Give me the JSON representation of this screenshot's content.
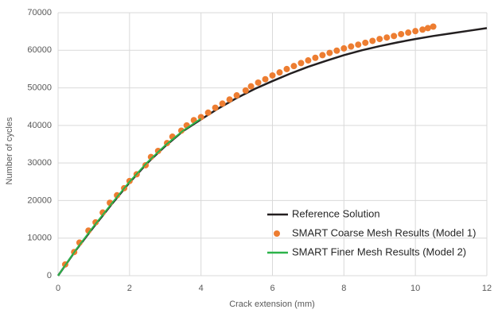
{
  "chart_data": {
    "type": "line",
    "x_label": "Crack extension (mm)",
    "y_label": "Number of cycles",
    "xlim": [
      0,
      12
    ],
    "xticks": [
      0,
      2,
      4,
      6,
      8,
      10,
      12
    ],
    "ylim": [
      0,
      70000
    ],
    "yticks": [
      0,
      10000,
      20000,
      30000,
      40000,
      50000,
      60000,
      70000
    ],
    "grid": true,
    "legend": "lower right",
    "series": [
      {
        "name": "Reference Solution",
        "color": "#231f20",
        "mode": "line",
        "x": [
          0,
          0.5,
          1,
          1.5,
          2,
          2.5,
          3,
          3.5,
          4,
          4.5,
          5,
          5.5,
          6,
          6.5,
          7,
          7.5,
          8,
          8.5,
          9,
          9.5,
          10,
          10.5,
          11,
          11.5,
          12
        ],
        "values": [
          0,
          6800,
          13000,
          19000,
          24800,
          30000,
          34500,
          38500,
          41600,
          44600,
          47300,
          49700,
          51800,
          53800,
          55600,
          57200,
          58700,
          60000,
          61100,
          62100,
          63000,
          63800,
          64500,
          65200,
          65900
        ]
      },
      {
        "name": "SMART Coarse Mesh Results (Model 1)",
        "color": "#ed7d31",
        "mode": "markers",
        "x": [
          0.2,
          0.45,
          0.6,
          0.85,
          1.05,
          1.25,
          1.45,
          1.65,
          1.85,
          2.0,
          2.2,
          2.45,
          2.6,
          2.8,
          3.05,
          3.2,
          3.45,
          3.6,
          3.8,
          4.0,
          4.2,
          4.4,
          4.6,
          4.8,
          5.0,
          5.25,
          5.4,
          5.6,
          5.8,
          6.0,
          6.2,
          6.4,
          6.6,
          6.8,
          7.0,
          7.2,
          7.4,
          7.6,
          7.8,
          8.0,
          8.2,
          8.4,
          8.6,
          8.8,
          9.0,
          9.2,
          9.4,
          9.6,
          9.8,
          10.0,
          10.2,
          10.35,
          10.5
        ],
        "values": [
          3000,
          6300,
          8800,
          12000,
          14200,
          16800,
          19400,
          21400,
          23300,
          25200,
          27000,
          29400,
          31600,
          33200,
          35300,
          37000,
          38600,
          40000,
          41400,
          42200,
          43400,
          44700,
          45800,
          46900,
          48000,
          49300,
          50400,
          51400,
          52300,
          53300,
          54100,
          55000,
          55800,
          56600,
          57300,
          58000,
          58700,
          59300,
          59900,
          60500,
          61000,
          61500,
          62000,
          62500,
          63000,
          63400,
          63800,
          64300,
          64700,
          65100,
          65500,
          65900,
          66300
        ]
      },
      {
        "name": "SMART Finer Mesh Results (Model 2)",
        "color": "#2cb34a",
        "mode": "line",
        "x": [
          0,
          0.5,
          1,
          1.5,
          2,
          2.5,
          3,
          3.5,
          4
        ],
        "values": [
          0,
          6900,
          13200,
          19200,
          25000,
          30200,
          34700,
          38600,
          41800
        ]
      }
    ]
  }
}
